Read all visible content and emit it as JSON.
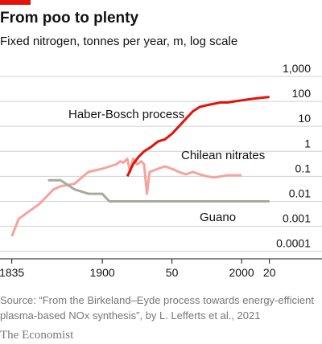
{
  "chart_data": {
    "type": "line",
    "title": "From poo to plenty",
    "subtitle": "Fixed nitrogen, tonnes per year, m, log scale",
    "log_scale": true,
    "grid": true,
    "xlim": [
      1830,
      2030
    ],
    "xticks": [
      1835,
      1900,
      {
        "value": 1950,
        "label": "50"
      },
      2000,
      {
        "value": 2020,
        "label": "20"
      }
    ],
    "ylim": [
      5e-05,
      1000
    ],
    "yticks": [
      {
        "value": 1000,
        "label": "1,000"
      },
      100,
      10,
      1,
      0.1,
      0.01,
      0.001,
      0.0001
    ],
    "series": [
      {
        "name": "Chilean nitrates",
        "color": "#f4a39d",
        "x": [
          1835,
          1840,
          1855,
          1865,
          1870,
          1880,
          1890,
          1900,
          1910,
          1913,
          1915,
          1918,
          1920,
          1922,
          1925,
          1928,
          1930,
          1932,
          1934,
          1940,
          1945,
          1950,
          1955,
          1960,
          1965,
          1970,
          1975,
          1980,
          1990,
          2000
        ],
        "values": [
          0.0004,
          0.002,
          0.008,
          0.03,
          0.04,
          0.05,
          0.15,
          0.2,
          0.3,
          0.4,
          0.35,
          0.5,
          0.15,
          0.5,
          0.3,
          0.4,
          0.3,
          0.02,
          0.15,
          0.2,
          0.25,
          0.2,
          0.15,
          0.12,
          0.15,
          0.12,
          0.1,
          0.09,
          0.11,
          0.11
        ]
      },
      {
        "name": "Haber-Bosch process",
        "color": "#e3120b",
        "x": [
          1918,
          1922,
          1926,
          1930,
          1935,
          1940,
          1945,
          1950,
          1955,
          1960,
          1965,
          1970,
          1975,
          1980,
          1985,
          1990,
          1995,
          2000,
          2005,
          2010,
          2015,
          2020
        ],
        "values": [
          0.1,
          0.3,
          0.6,
          1,
          1.5,
          2.5,
          3,
          5,
          10,
          20,
          40,
          60,
          70,
          80,
          90,
          90,
          100,
          110,
          120,
          130,
          140,
          150
        ]
      },
      {
        "name": "Guano",
        "color": "#a8aa9d",
        "x": [
          1861,
          1870,
          1880,
          1890,
          1900,
          1905,
          1910,
          1950,
          2000,
          2020
        ],
        "values": [
          0.07,
          0.07,
          0.03,
          0.02,
          0.02,
          0.01,
          0.01,
          0.01,
          0.01,
          0.01
        ]
      }
    ],
    "source": [
      "Source: “From the Birkeland–Eyde process towards energy-efficient",
      "plasma-based NOx synthesis”, by L. Lefferts et al., 2021"
    ],
    "footer": "The Economist"
  }
}
